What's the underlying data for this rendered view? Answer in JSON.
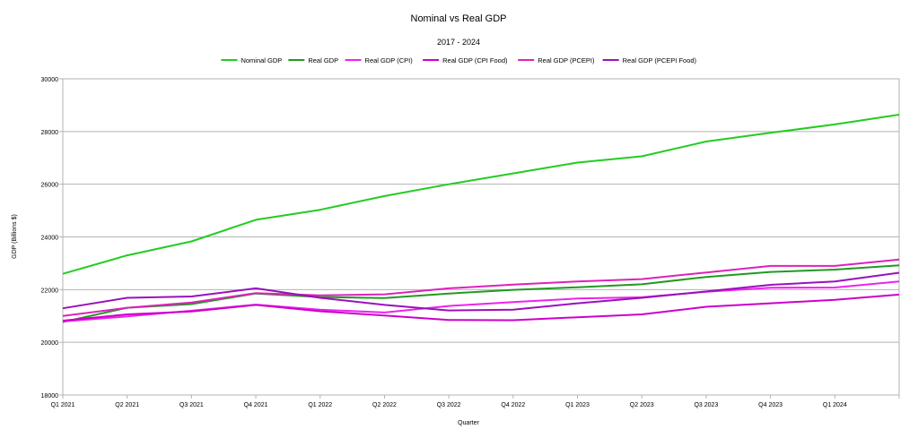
{
  "chart_data": {
    "type": "line",
    "title": "Nominal vs Real GDP",
    "subtitle": "2017 - 2024",
    "xlabel": "Quarter",
    "ylabel": "GDP (Billions $)",
    "ylim": [
      18000,
      30000
    ],
    "yticks": [
      "18000",
      "20000",
      "22000",
      "24000",
      "26000",
      "28000",
      "30000"
    ],
    "grid": true,
    "legend_position": "top",
    "categories": [
      "Q1 2021",
      "Q2 2021",
      "Q3 2021",
      "Q4 2021",
      "Q1 2022",
      "Q2 2022",
      "Q3 2022",
      "Q4 2022",
      "Q1 2023",
      "Q2 2023",
      "Q3 2023",
      "Q4 2023",
      "Q1 2024",
      ""
    ],
    "series": [
      {
        "name": "Nominal GDP",
        "color": "#22cc22",
        "values": [
          22600,
          23300,
          23830,
          24650,
          25030,
          25550,
          26000,
          26410,
          26820,
          27060,
          27620,
          27950,
          28270,
          28640
        ]
      },
      {
        "name": "Real GDP",
        "color": "#229922",
        "values": [
          20770,
          21310,
          21450,
          21850,
          21720,
          21680,
          21850,
          21990,
          22090,
          22200,
          22480,
          22670,
          22760,
          22920
        ]
      },
      {
        "name": "Real GDP (CPI)",
        "color": "#ee22ee",
        "values": [
          20790,
          20980,
          21200,
          21430,
          21240,
          21130,
          21380,
          21530,
          21660,
          21710,
          21920,
          22070,
          22080,
          22310
        ]
      },
      {
        "name": "Real GDP (CPI Food)",
        "color": "#cc00cc",
        "values": [
          20820,
          21060,
          21170,
          21420,
          21180,
          21020,
          20850,
          20840,
          20950,
          21060,
          21350,
          21480,
          21610,
          21810
        ]
      },
      {
        "name": "Real GDP (PCEPI)",
        "color": "#dd22bb",
        "values": [
          21000,
          21310,
          21510,
          21870,
          21780,
          21820,
          22050,
          22190,
          22310,
          22400,
          22650,
          22900,
          22900,
          23140
        ]
      },
      {
        "name": "Real GDP (PCEPI Food)",
        "color": "#9911bb",
        "values": [
          21290,
          21690,
          21740,
          22050,
          21690,
          21420,
          21210,
          21240,
          21480,
          21690,
          21930,
          22180,
          22310,
          22640
        ]
      }
    ]
  }
}
